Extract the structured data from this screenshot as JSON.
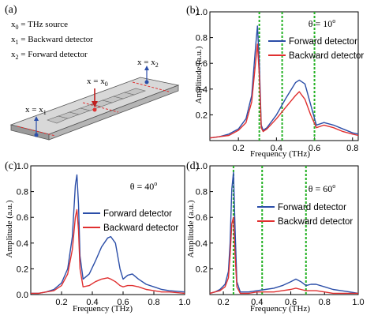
{
  "colors": {
    "forward": "#2b4ea8",
    "backward": "#e03030",
    "marker": "#22b122",
    "axis": "#000000"
  },
  "panel_a": {
    "label": "(a)",
    "legend_lines": [
      {
        "var": "x",
        "sub": "0",
        "text": " = THz source"
      },
      {
        "var": "x",
        "sub": "1",
        "text": " = Backward detector"
      },
      {
        "var": "x",
        "sub": "2",
        "text": " = Forward detector"
      }
    ],
    "pointer_labels": {
      "x0": {
        "var": "x = x",
        "sub": "0"
      },
      "x1": {
        "var": "x = x",
        "sub": "1"
      },
      "x2": {
        "var": "x = x",
        "sub": "2"
      }
    }
  },
  "chart_data": [
    {
      "id": "b",
      "type": "line",
      "panel_label": "(b)",
      "angle_label": "θ = 10",
      "angle_sup": "o",
      "xlabel": "Frequency (THz)",
      "ylabel": "Amplitude (a.u.)",
      "xlim": [
        0.05,
        0.83
      ],
      "ylim": [
        0,
        1.0
      ],
      "xticks": [
        0.2,
        0.4,
        0.6,
        0.8
      ],
      "yticks": [
        0.2,
        0.4,
        0.6,
        0.8,
        1.0
      ],
      "legend": [
        "Forward detector",
        "Backward detector"
      ],
      "legend_position": "center-right",
      "vlines": [
        0.31,
        0.43,
        0.6
      ],
      "series": [
        {
          "name": "Forward detector",
          "x": [
            0.05,
            0.1,
            0.15,
            0.2,
            0.24,
            0.27,
            0.29,
            0.3,
            0.31,
            0.32,
            0.33,
            0.35,
            0.4,
            0.45,
            0.5,
            0.52,
            0.55,
            0.58,
            0.61,
            0.65,
            0.7,
            0.75,
            0.8,
            0.83
          ],
          "y": [
            0.02,
            0.03,
            0.05,
            0.09,
            0.17,
            0.35,
            0.72,
            0.89,
            0.6,
            0.12,
            0.08,
            0.1,
            0.2,
            0.33,
            0.45,
            0.47,
            0.44,
            0.28,
            0.12,
            0.14,
            0.12,
            0.09,
            0.06,
            0.05
          ]
        },
        {
          "name": "Backward detector",
          "x": [
            0.05,
            0.1,
            0.15,
            0.2,
            0.24,
            0.27,
            0.29,
            0.3,
            0.31,
            0.32,
            0.33,
            0.35,
            0.4,
            0.45,
            0.5,
            0.52,
            0.55,
            0.58,
            0.61,
            0.65,
            0.7,
            0.75,
            0.8,
            0.83
          ],
          "y": [
            0.02,
            0.03,
            0.04,
            0.08,
            0.14,
            0.3,
            0.6,
            0.75,
            0.5,
            0.1,
            0.07,
            0.09,
            0.17,
            0.26,
            0.35,
            0.38,
            0.32,
            0.2,
            0.1,
            0.12,
            0.1,
            0.07,
            0.05,
            0.04
          ]
        }
      ]
    },
    {
      "id": "c",
      "type": "line",
      "panel_label": "(c)",
      "angle_label": "θ = 40",
      "angle_sup": "o",
      "xlabel": "Frequency (THz)",
      "ylabel": "Amplitude (a.u.)",
      "xlim": [
        0.0,
        1.0
      ],
      "ylim": [
        0,
        1.0
      ],
      "xticks": [
        0.2,
        0.4,
        0.6,
        0.8,
        1.0
      ],
      "yticks": [
        0.0,
        0.2,
        0.4,
        0.6,
        0.8,
        1.0
      ],
      "legend": [
        "Forward detector",
        "Backward detector"
      ],
      "legend_position": "center-right",
      "vlines": [],
      "series": [
        {
          "name": "Forward detector",
          "x": [
            0.0,
            0.05,
            0.1,
            0.15,
            0.2,
            0.24,
            0.27,
            0.29,
            0.3,
            0.31,
            0.32,
            0.34,
            0.38,
            0.42,
            0.46,
            0.5,
            0.52,
            0.55,
            0.58,
            0.6,
            0.63,
            0.66,
            0.7,
            0.75,
            0.8,
            0.85,
            0.9,
            1.0
          ],
          "y": [
            0.01,
            0.01,
            0.02,
            0.04,
            0.09,
            0.2,
            0.45,
            0.85,
            0.93,
            0.7,
            0.3,
            0.12,
            0.16,
            0.26,
            0.37,
            0.44,
            0.45,
            0.4,
            0.2,
            0.12,
            0.15,
            0.16,
            0.12,
            0.08,
            0.06,
            0.04,
            0.03,
            0.02
          ]
        },
        {
          "name": "Backward detector",
          "x": [
            0.0,
            0.05,
            0.1,
            0.15,
            0.2,
            0.24,
            0.27,
            0.29,
            0.3,
            0.31,
            0.32,
            0.34,
            0.38,
            0.42,
            0.46,
            0.5,
            0.52,
            0.55,
            0.58,
            0.6,
            0.63,
            0.66,
            0.7,
            0.75,
            0.8,
            0.85,
            0.9,
            1.0
          ],
          "y": [
            0.01,
            0.01,
            0.02,
            0.03,
            0.07,
            0.16,
            0.35,
            0.6,
            0.66,
            0.5,
            0.2,
            0.06,
            0.07,
            0.1,
            0.12,
            0.13,
            0.12,
            0.1,
            0.07,
            0.06,
            0.07,
            0.07,
            0.06,
            0.04,
            0.03,
            0.02,
            0.02,
            0.01
          ]
        }
      ]
    },
    {
      "id": "d",
      "type": "line",
      "panel_label": "(d)",
      "angle_label": "θ = 60",
      "angle_sup": "o",
      "xlabel": "Frequency (THz)",
      "ylabel": "Amplitude (a.u.)",
      "xlim": [
        0.12,
        1.0
      ],
      "ylim": [
        0,
        1.0
      ],
      "xticks": [
        0.2,
        0.4,
        0.6,
        0.8,
        1.0
      ],
      "yticks": [
        0.2,
        0.4,
        0.6,
        0.8,
        1.0
      ],
      "legend": [
        "Forward detector",
        "Backward detector"
      ],
      "legend_position": "top-right",
      "vlines": [
        0.26,
        0.43,
        0.69
      ],
      "series": [
        {
          "name": "Forward detector",
          "x": [
            0.12,
            0.15,
            0.18,
            0.21,
            0.23,
            0.24,
            0.25,
            0.26,
            0.27,
            0.28,
            0.3,
            0.35,
            0.4,
            0.45,
            0.5,
            0.55,
            0.6,
            0.63,
            0.66,
            0.69,
            0.72,
            0.75,
            0.8,
            0.85,
            0.9,
            0.95,
            1.0
          ],
          "y": [
            0.01,
            0.02,
            0.04,
            0.08,
            0.18,
            0.4,
            0.82,
            0.95,
            0.5,
            0.1,
            0.02,
            0.02,
            0.03,
            0.04,
            0.05,
            0.07,
            0.1,
            0.12,
            0.1,
            0.07,
            0.08,
            0.08,
            0.06,
            0.04,
            0.03,
            0.02,
            0.01
          ]
        },
        {
          "name": "Backward detector",
          "x": [
            0.12,
            0.15,
            0.18,
            0.21,
            0.23,
            0.24,
            0.25,
            0.26,
            0.27,
            0.28,
            0.3,
            0.35,
            0.4,
            0.45,
            0.5,
            0.55,
            0.6,
            0.63,
            0.66,
            0.69,
            0.72,
            0.75,
            0.8,
            0.85,
            0.9,
            0.95,
            1.0
          ],
          "y": [
            0.01,
            0.02,
            0.03,
            0.06,
            0.13,
            0.3,
            0.55,
            0.6,
            0.3,
            0.06,
            0.01,
            0.01,
            0.02,
            0.02,
            0.02,
            0.03,
            0.04,
            0.05,
            0.04,
            0.03,
            0.03,
            0.03,
            0.02,
            0.01,
            0.01,
            0.01,
            0.01
          ]
        }
      ]
    }
  ]
}
